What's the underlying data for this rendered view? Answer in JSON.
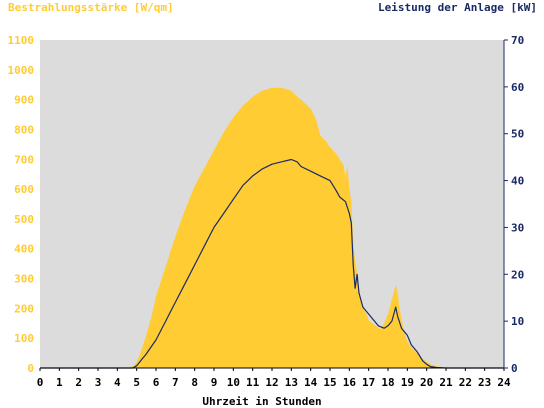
{
  "chart_data": {
    "type": "area",
    "title": "",
    "left_axis_title": "Bestrahlungsstärke [W/qm]",
    "right_axis_title": "Leistung der Anlage [kW]",
    "xlabel": "Uhrzeit in Stunden",
    "xlim": [
      0,
      24
    ],
    "ylim_left": [
      0,
      1100
    ],
    "ylim_right": [
      0,
      70
    ],
    "x_ticks": [
      "0",
      "1",
      "2",
      "3",
      "4",
      "5",
      "6",
      "7",
      "8",
      "9",
      "10",
      "11",
      "12",
      "13",
      "14",
      "15",
      "16",
      "17",
      "18",
      "19",
      "20",
      "21",
      "22",
      "23",
      "24"
    ],
    "y_left_ticks": [
      "0",
      "100",
      "200",
      "300",
      "400",
      "500",
      "600",
      "700",
      "800",
      "900",
      "1000",
      "1100"
    ],
    "y_right_ticks": [
      "0",
      "10",
      "20",
      "30",
      "40",
      "50",
      "60",
      "70"
    ],
    "grid": false,
    "colors": {
      "plot_background": "#dcdcdc",
      "irradiance_fill": "#ffcc33",
      "left_axis_text": "#ffcc33",
      "power_line": "#1a2a66",
      "right_axis_text": "#1a2a66"
    },
    "series": [
      {
        "axis": "left",
        "style": "area",
        "x": [
          0,
          4.6,
          4.9,
          5.0,
          5.2,
          5.5,
          5.8,
          6.0,
          6.5,
          7.0,
          7.5,
          8.0,
          8.5,
          9.0,
          9.5,
          10.0,
          10.5,
          11.0,
          11.5,
          12.0,
          12.5,
          13.0,
          13.3,
          13.5,
          14.0,
          14.3,
          14.5,
          14.8,
          15.0,
          15.3,
          15.5,
          15.7,
          15.8,
          15.9,
          16.0,
          16.1,
          16.2,
          16.3,
          16.4,
          16.5,
          16.7,
          16.9,
          17.0,
          17.2,
          17.4,
          17.6,
          17.8,
          18.0,
          18.2,
          18.4,
          18.5,
          18.6,
          18.8,
          19.0,
          19.2,
          19.5,
          19.8,
          20.0,
          20.3,
          20.6,
          21.0,
          24
        ],
        "values": [
          0,
          0,
          10,
          20,
          50,
          110,
          180,
          240,
          340,
          440,
          530,
          610,
          670,
          730,
          790,
          840,
          880,
          910,
          930,
          940,
          940,
          930,
          910,
          900,
          870,
          830,
          780,
          760,
          740,
          720,
          700,
          680,
          640,
          680,
          600,
          560,
          420,
          360,
          320,
          260,
          200,
          180,
          160,
          150,
          140,
          130,
          150,
          180,
          230,
          280,
          250,
          200,
          130,
          90,
          70,
          50,
          30,
          20,
          10,
          5,
          0,
          0
        ]
      },
      {
        "axis": "right",
        "style": "line",
        "x": [
          0,
          4.8,
          5.0,
          5.2,
          5.5,
          6.0,
          6.5,
          7.0,
          7.5,
          8.0,
          8.5,
          9.0,
          9.5,
          10.0,
          10.5,
          11.0,
          11.5,
          12.0,
          12.5,
          13.0,
          13.3,
          13.5,
          14.0,
          14.5,
          15.0,
          15.3,
          15.5,
          15.8,
          16.0,
          16.1,
          16.2,
          16.3,
          16.4,
          16.5,
          16.7,
          17.0,
          17.2,
          17.5,
          17.8,
          18.0,
          18.2,
          18.4,
          18.5,
          18.7,
          19.0,
          19.2,
          19.5,
          19.8,
          20.0,
          20.2,
          20.5,
          21.0,
          24
        ],
        "values": [
          0,
          0,
          0.5,
          1.5,
          3,
          6,
          10,
          14,
          18,
          22,
          26,
          30,
          33,
          36,
          39,
          41,
          42.5,
          43.5,
          44,
          44.5,
          44,
          43,
          42,
          41,
          40,
          38,
          36.5,
          35.5,
          33,
          31,
          22,
          17,
          20,
          16,
          13,
          11.5,
          10.5,
          9,
          8.5,
          9,
          10,
          13,
          11,
          8.5,
          7,
          5,
          3.5,
          1.5,
          0.8,
          0.3,
          0.1,
          0,
          0
        ]
      }
    ]
  }
}
